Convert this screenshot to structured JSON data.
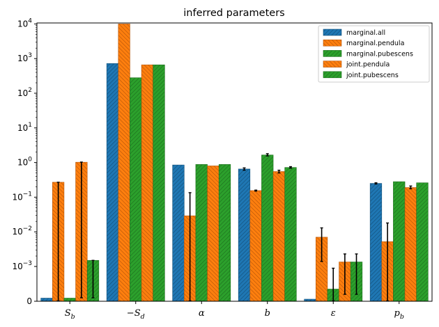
{
  "chart_data": {
    "type": "bar",
    "title": "inferred parameters",
    "y_scale": "symlog",
    "y_linthresh": 0.001,
    "ylim": [
      0,
      10000
    ],
    "y_ticks": [
      {
        "value": 0,
        "label": "0"
      },
      {
        "value": 0.001,
        "label": "10",
        "exp": "−3"
      },
      {
        "value": 0.01,
        "label": "10",
        "exp": "−2"
      },
      {
        "value": 0.1,
        "label": "10",
        "exp": "−1"
      },
      {
        "value": 1,
        "label": "10",
        "exp": "0"
      },
      {
        "value": 10,
        "label": "10",
        "exp": "1"
      },
      {
        "value": 100,
        "label": "10",
        "exp": "2"
      },
      {
        "value": 1000,
        "label": "10",
        "exp": "3"
      },
      {
        "value": 10000,
        "label": "10",
        "exp": "4"
      }
    ],
    "categories": [
      {
        "base": "S",
        "sub": "b",
        "prefix": ""
      },
      {
        "base": "S",
        "sub": "d",
        "prefix": "−"
      },
      {
        "base": "α",
        "sub": "",
        "prefix": ""
      },
      {
        "base": "b",
        "sub": "",
        "prefix": ""
      },
      {
        "base": "ε",
        "sub": "",
        "prefix": ""
      },
      {
        "base": "p",
        "sub": "b",
        "prefix": ""
      }
    ],
    "series": [
      {
        "name": "marginal.all",
        "color": "#1f77b4",
        "stroke": "#12507a",
        "values": [
          9e-05,
          720,
          0.85,
          0.65,
          6e-05,
          0.25
        ],
        "err_low": [
          null,
          null,
          null,
          0.6,
          null,
          0.24
        ],
        "err_high": [
          null,
          null,
          null,
          0.7,
          null,
          0.26
        ]
      },
      {
        "name": "marginal.pendula",
        "color": "#ff7f0e",
        "stroke": "#b3560a",
        "values": [
          0.27,
          10000,
          0.029,
          0.155,
          0.007,
          0.0052
        ],
        "err_low": [
          1e-05,
          null,
          1e-05,
          0.15,
          0.0014,
          1e-05
        ],
        "err_high": [
          0.27,
          null,
          0.135,
          0.16,
          0.013,
          0.018
        ]
      },
      {
        "name": "marginal.pubescens",
        "color": "#2ca02c",
        "stroke": "#1d6e1d",
        "values": [
          9e-05,
          280,
          0.88,
          1.65,
          0.00035,
          0.28
        ],
        "err_low": [
          null,
          null,
          null,
          1.55,
          1e-05,
          null
        ],
        "err_high": [
          null,
          null,
          null,
          1.8,
          0.00095,
          null
        ]
      },
      {
        "name": "joint.pendula",
        "color": "#ff7f0e",
        "stroke": "#b3560a",
        "values": [
          1.02,
          660,
          0.8,
          0.55,
          0.00135,
          0.19
        ],
        "err_low": [
          0.0001,
          null,
          null,
          0.5,
          0.0002,
          0.175
        ],
        "err_high": [
          1.03,
          null,
          null,
          0.6,
          0.0023,
          0.21
        ]
      },
      {
        "name": "joint.pubescens",
        "color": "#2ca02c",
        "stroke": "#1d6e1d",
        "values": [
          0.0015,
          660,
          0.88,
          0.72,
          0.00135,
          0.26
        ],
        "err_low": [
          0.0001,
          null,
          null,
          0.69,
          0.0002,
          null
        ],
        "err_high": [
          0.0015,
          null,
          null,
          0.76,
          0.0023,
          null
        ]
      }
    ],
    "legend_position": "top-right",
    "grid": false
  }
}
